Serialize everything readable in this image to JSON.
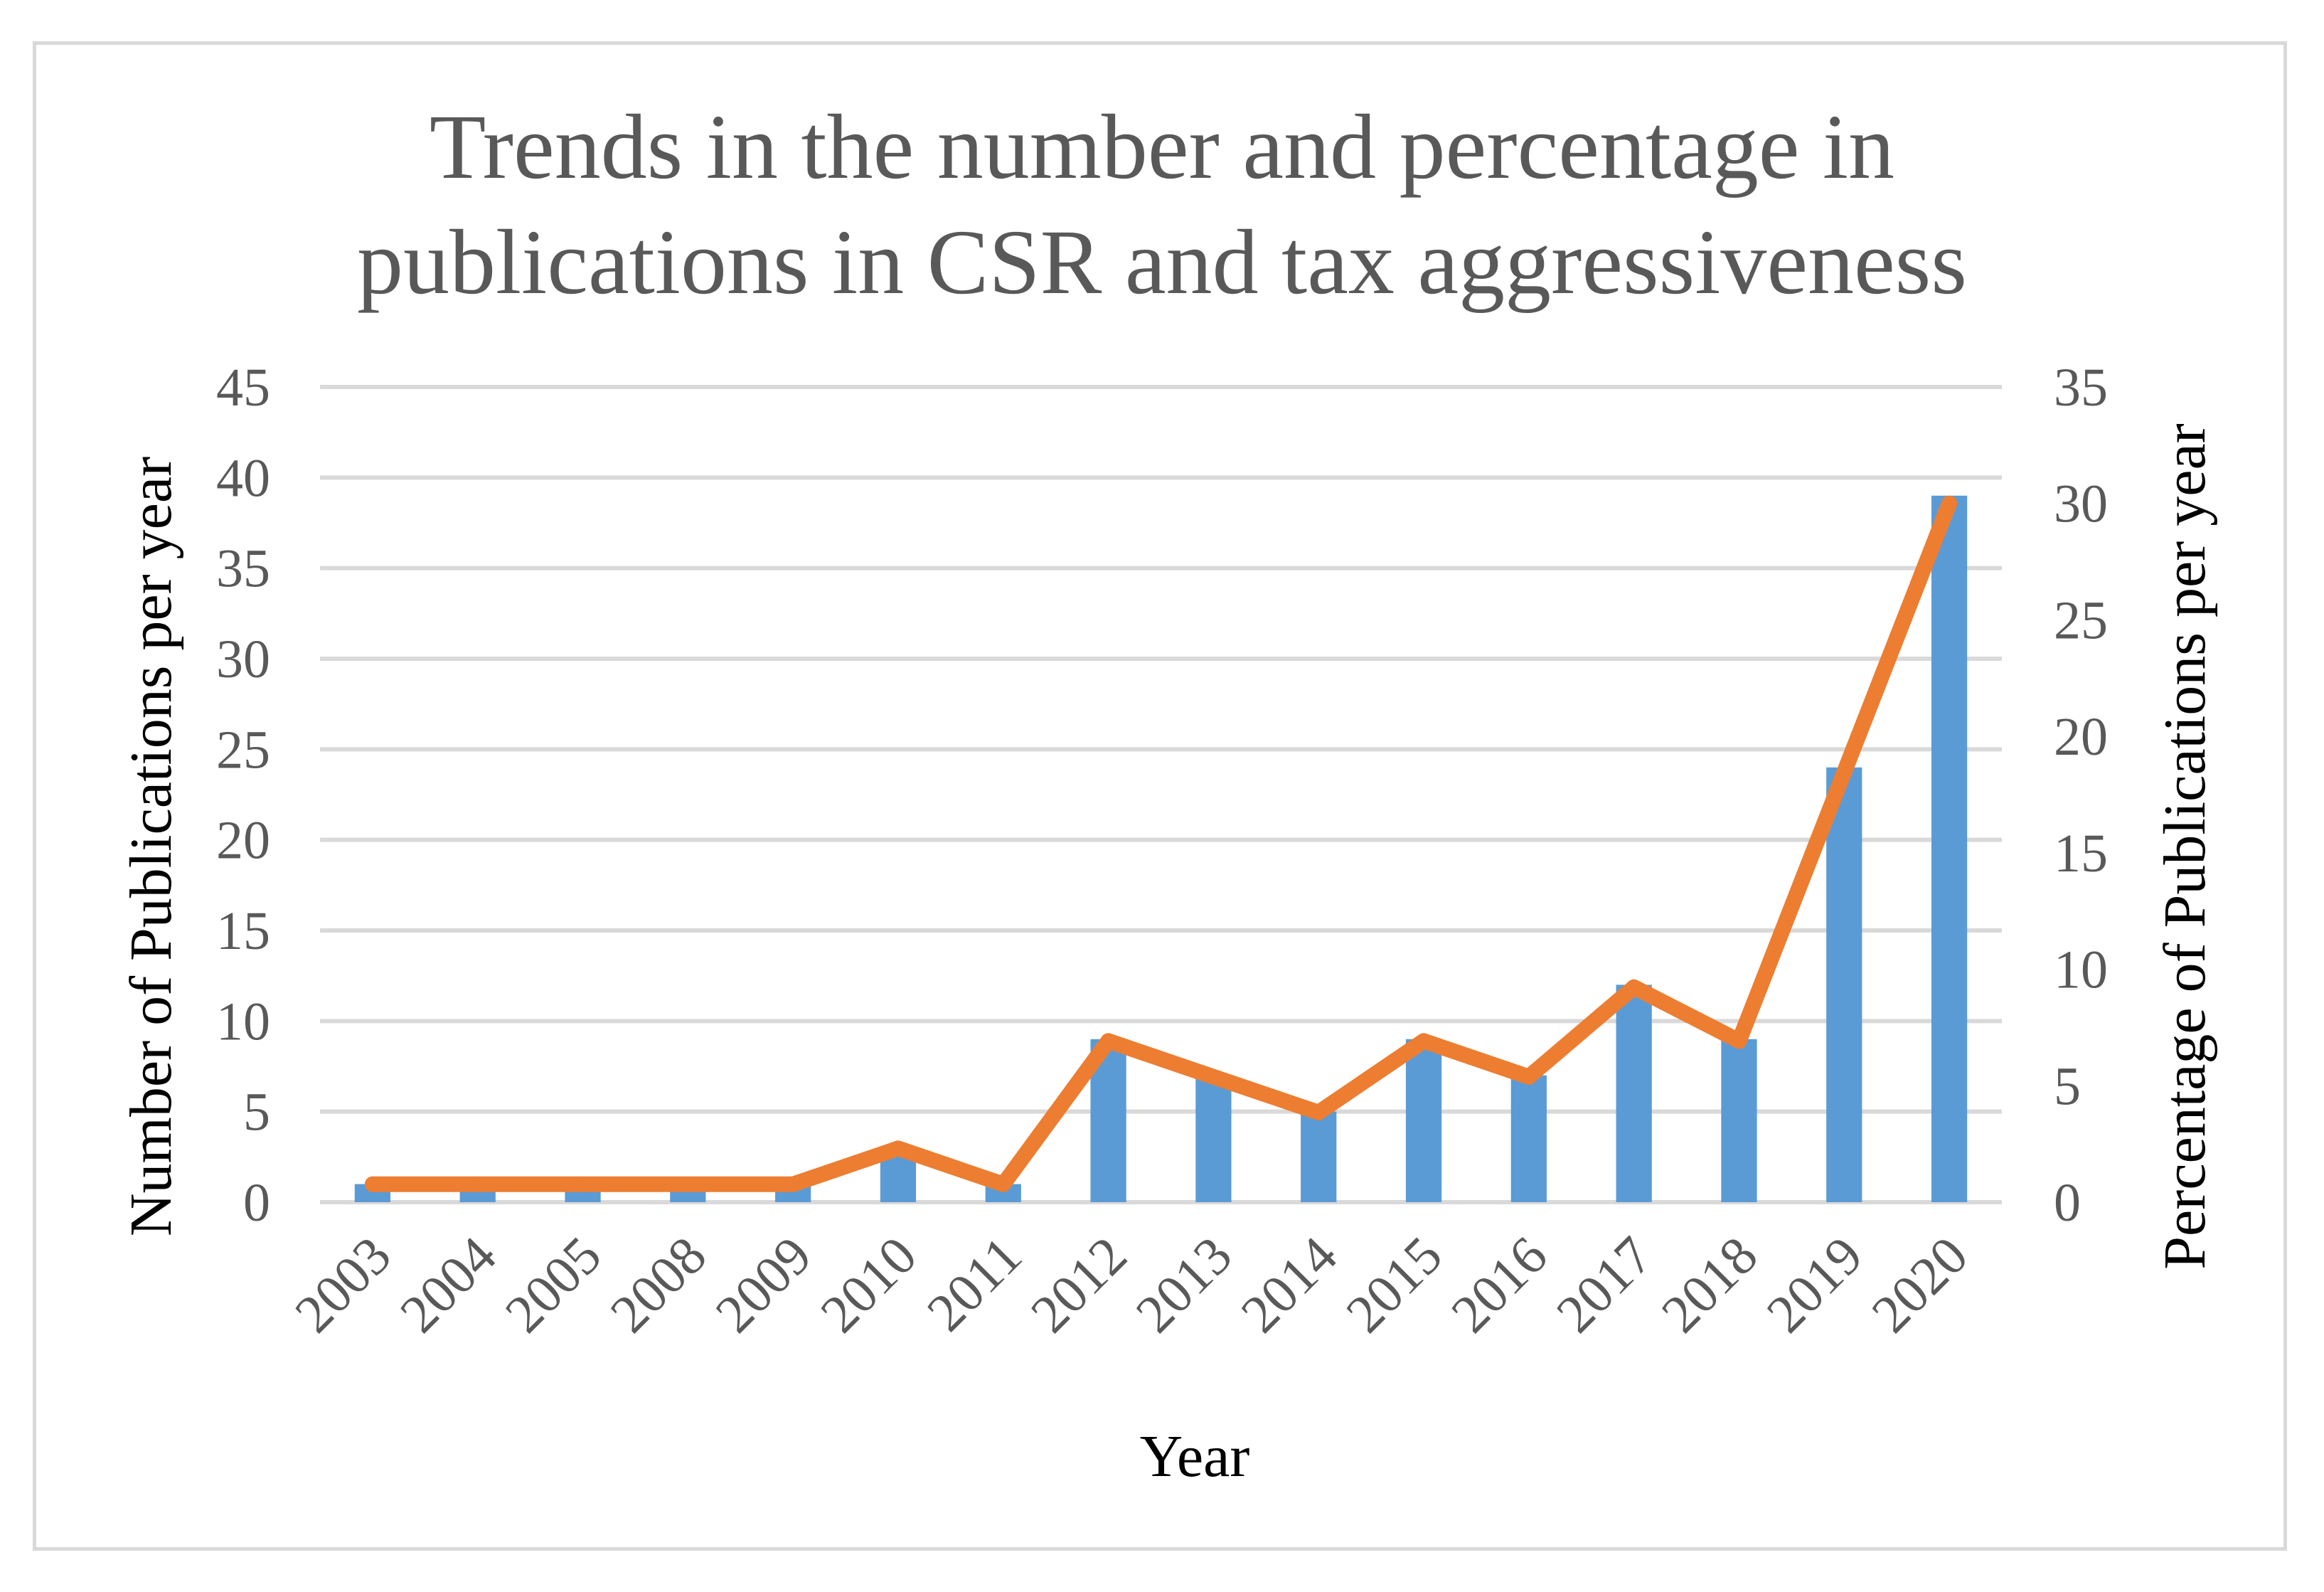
{
  "chart_data": {
    "type": "bar+line",
    "title_lines": [
      "Trends in the number and percentage in",
      "publications in CSR and  tax aggressiveness"
    ],
    "xlabel": "Year",
    "ylabel_left": "Number of Publications per year",
    "ylabel_right": "Percentage of Publications per year",
    "categories": [
      "2003",
      "2004",
      "2005",
      "2008",
      "2009",
      "2010",
      "2011",
      "2012",
      "2013",
      "2014",
      "2015",
      "2016",
      "2017",
      "2018",
      "2019",
      "2020"
    ],
    "left_axis": {
      "min": 0,
      "max": 45,
      "step": 5,
      "ticks": [
        "0",
        "5",
        "10",
        "15",
        "20",
        "25",
        "30",
        "35",
        "40",
        "45"
      ]
    },
    "right_axis": {
      "min": 0,
      "max": 35,
      "step": 5,
      "ticks": [
        "0",
        "5",
        "10",
        "15",
        "20",
        "25",
        "30",
        "35"
      ]
    },
    "series": [
      {
        "name": "Number of Publications",
        "type": "bar",
        "axis": "left",
        "color": "#5b9bd5",
        "values": [
          1,
          1,
          1,
          1,
          1,
          3,
          1,
          9,
          7,
          5,
          9,
          7,
          12,
          9,
          24,
          39
        ]
      },
      {
        "name": "Percentage of Publications",
        "type": "line",
        "axis": "right",
        "color": "#ed7d31",
        "values": [
          0.77,
          0.77,
          0.77,
          0.77,
          0.77,
          2.31,
          0.77,
          6.92,
          5.38,
          3.85,
          6.92,
          5.38,
          9.23,
          6.92,
          18.46,
          30.0
        ]
      }
    ],
    "grid": true,
    "legend": "none"
  }
}
